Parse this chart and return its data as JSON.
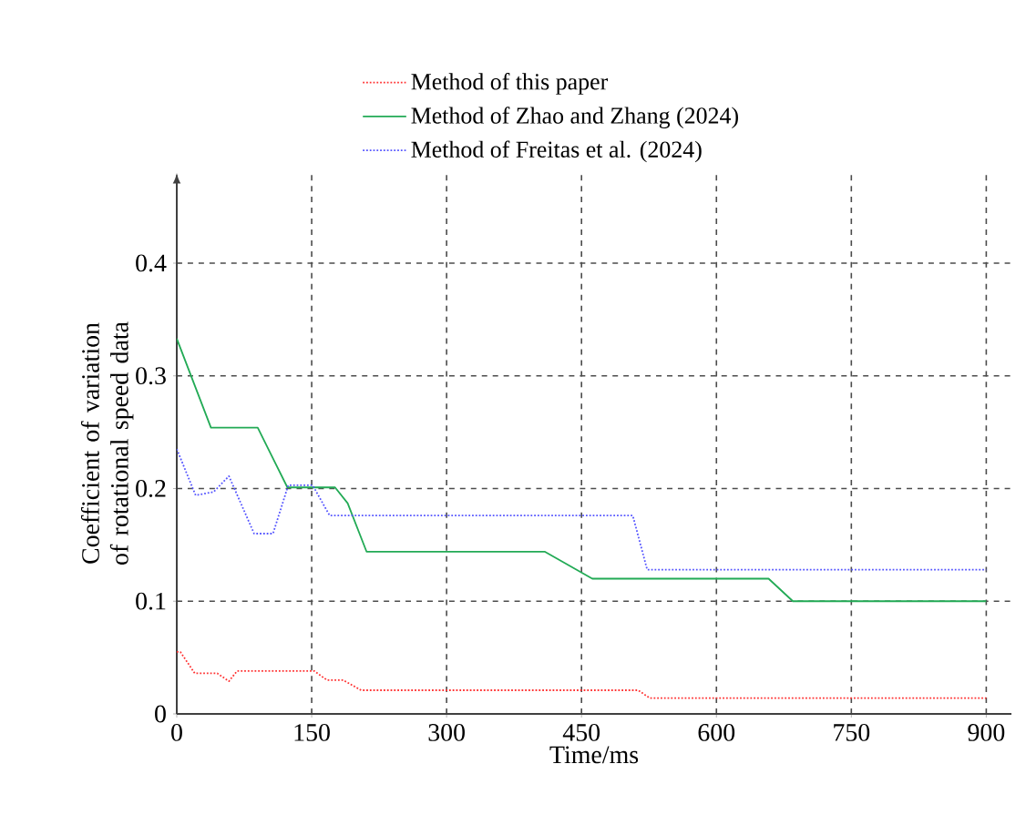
{
  "chart_data": {
    "type": "line",
    "xlabel": "Time/ms",
    "ylabel": "Coefficient of variation of rotational speed data",
    "xlim": [
      0,
      928
    ],
    "ylim": [
      0,
      0.48
    ],
    "xticks": [
      0,
      150,
      300,
      450,
      600,
      750,
      900
    ],
    "yticks": [
      0,
      0.1,
      0.2,
      0.3,
      0.4
    ],
    "grid": true,
    "legend": "top",
    "series": [
      {
        "name": "Method of this paper",
        "color": "#ff3333",
        "line_style": "dotted",
        "x": [
          0,
          4,
          20,
          45,
          58,
          67,
          153,
          167,
          185,
          205,
          513,
          526,
          900
        ],
        "values": [
          0.055,
          0.055,
          0.036,
          0.036,
          0.029,
          0.038,
          0.038,
          0.03,
          0.03,
          0.021,
          0.021,
          0.014,
          0.014
        ]
      },
      {
        "name": "Method of Zhao and Zhang (2024)",
        "color": "#22aa55",
        "line_style": "solid",
        "x": [
          0,
          38,
          90,
          123,
          176,
          190,
          211,
          409,
          462,
          658,
          685,
          900
        ],
        "values": [
          0.333,
          0.254,
          0.254,
          0.201,
          0.201,
          0.187,
          0.144,
          0.144,
          0.12,
          0.12,
          0.1,
          0.1
        ]
      },
      {
        "name": "Method of Freitas et al. (2024)",
        "color": "#5555ff",
        "line_style": "dotted",
        "x": [
          0,
          21,
          41,
          58,
          86,
          107,
          124,
          151,
          170,
          507,
          523,
          900
        ],
        "values": [
          0.235,
          0.194,
          0.197,
          0.211,
          0.16,
          0.16,
          0.203,
          0.203,
          0.176,
          0.176,
          0.128,
          0.128
        ]
      }
    ]
  }
}
